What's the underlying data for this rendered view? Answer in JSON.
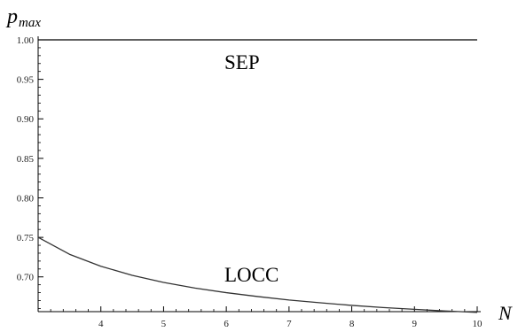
{
  "chart_data": {
    "type": "line",
    "x_ticks": [
      4,
      5,
      6,
      7,
      8,
      9,
      10
    ],
    "y_ticks": [
      "0.70",
      "0.75",
      "0.80",
      "0.85",
      "0.90",
      "0.95",
      "1.00"
    ],
    "xlim": [
      3,
      10
    ],
    "ylim": [
      0.656,
      1.0
    ],
    "ylabel_main": "p",
    "ylabel_sub": "max",
    "xlabel": "N",
    "series": [
      {
        "name": "SEP",
        "x": [
          3,
          4,
          5,
          6,
          7,
          8,
          9,
          10
        ],
        "y": [
          1.0,
          1.0,
          1.0,
          1.0,
          1.0,
          1.0,
          1.0,
          1.0
        ]
      },
      {
        "name": "LOCC",
        "x": [
          3,
          3.5,
          4,
          4.5,
          5,
          5.5,
          6,
          6.5,
          7,
          7.5,
          8,
          8.5,
          9,
          9.5,
          10
        ],
        "y": [
          0.75,
          0.7286,
          0.7134,
          0.702,
          0.693,
          0.6858,
          0.68,
          0.6751,
          0.6707,
          0.6672,
          0.6639,
          0.6612,
          0.6589,
          0.6568,
          0.655
        ]
      }
    ]
  }
}
